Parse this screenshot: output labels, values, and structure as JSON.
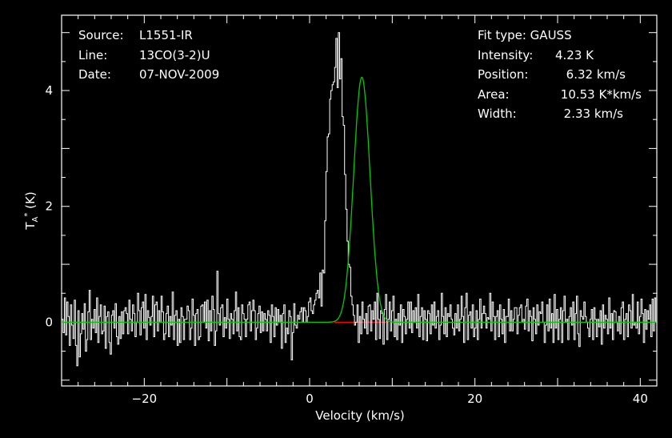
{
  "info": {
    "source_label": "Source:",
    "source_value": "L1551-IR",
    "line_label": "Line:",
    "line_value": "13CO(3-2)U",
    "date_label": "Date:",
    "date_value": "07-NOV-2009",
    "fit_type": "Fit type: GAUSS",
    "intensity_label": "Intensity:",
    "intensity_value": "4.23 K",
    "position_label": "Position:",
    "position_value": "6.32 km/s",
    "area_label": "Area:",
    "area_value": "10.53 K*km/s",
    "width_label": "Width:",
    "width_value": "2.33 km/s"
  },
  "chart_data": {
    "type": "line",
    "title": "",
    "xlabel": "Velocity (km/s)",
    "ylabel_main": "T",
    "ylabel_sub": "A",
    "ylabel_sup": "*",
    "ylabel_unit": "(K)",
    "xlim": [
      -30,
      42
    ],
    "ylim": [
      -1.1,
      5.3
    ],
    "x_ticks": [
      -20,
      0,
      20,
      40
    ],
    "x_tick_labels": [
      "−20",
      "0",
      "20",
      "40"
    ],
    "y_ticks": [
      0,
      2,
      4
    ],
    "y_tick_labels": [
      "0",
      "2",
      "4"
    ],
    "grid": false,
    "colors": {
      "spectrum": "#ffffff",
      "fit": "#00cc00",
      "baseline": "#ff0000",
      "axes": "#ffffff"
    },
    "baseline": {
      "x": [
        3.0,
        9.5
      ],
      "y": [
        0,
        0
      ]
    },
    "fit": {
      "model": "gauss",
      "amplitude": 4.23,
      "center": 6.32,
      "fwhm": 2.33
    },
    "series": [
      {
        "x_start": -29.9,
        "x_step": 0.15,
        "y": [
          0.05,
          -0.18,
          0.42,
          -0.22,
          0.35,
          0.1,
          -0.4,
          0.3,
          -0.05,
          -0.28,
          0.38,
          -0.4,
          -0.75,
          0.2,
          -0.6,
          -0.2,
          0.15,
          -0.12,
          0.32,
          -0.5,
          -0.3,
          0.18,
          0.55,
          -0.3,
          0.05,
          -0.1,
          0.22,
          -0.18,
          0.42,
          -0.35,
          0.1,
          0.3,
          -0.2,
          -0.15,
          0.28,
          -0.45,
          0.1,
          0.18,
          -0.35,
          -0.55,
          0.12,
          0.2,
          -0.1,
          0.32,
          -0.25,
          -0.38,
          0.1,
          -0.28,
          0.18,
          -0.2,
          0.2,
          0.25,
          0.15,
          -0.2,
          0.38,
          0.05,
          -0.15,
          0.3,
          0.15,
          -0.25,
          0.0,
          0.5,
          0.2,
          -0.22,
          0.25,
          0.35,
          -0.1,
          0.48,
          -0.3,
          0.2,
          0.08,
          -0.05,
          0.1,
          0.45,
          -0.25,
          0.3,
          0.35,
          -0.15,
          0.2,
          0.0,
          0.45,
          0.18,
          -0.3,
          -0.2,
          0.15,
          0.28,
          -0.25,
          0.1,
          -0.05,
          0.52,
          -0.3,
          0.12,
          0.2,
          -0.4,
          0.05,
          -0.35,
          0.25,
          0.1,
          -0.3,
          0.05,
          0.05,
          0.28,
          0.2,
          -0.3,
          -0.1,
          0.4,
          0.12,
          -0.4,
          0.15,
          0.22,
          -0.3,
          -0.25,
          0.28,
          0.3,
          0.0,
          0.35,
          -0.1,
          0.38,
          -0.32,
          0.2,
          -0.15,
          0.45,
          0.22,
          -0.4,
          -0.15,
          0.88,
          0.15,
          -0.05,
          0.25,
          0.3,
          -0.25,
          0.08,
          -0.1,
          0.4,
          0.05,
          -0.28,
          0.15,
          0.05,
          -0.2,
          0.2,
          0.52,
          -0.15,
          0.25,
          -0.25,
          -0.3,
          0.3,
          0.15,
          0.05,
          -0.25,
          0.05,
          0.3,
          0.35,
          -0.15,
          0.2,
          0.38,
          0.2,
          -0.3,
          -0.1,
          0.15,
          0.28,
          -0.18,
          0.18,
          -0.15,
          0.15,
          0.05,
          -0.15,
          0.2,
          0.12,
          -0.35,
          0.3,
          0.1,
          -0.25,
          0.25,
          -0.05,
          0.22,
          0.0,
          0.12,
          -0.45,
          0.15,
          0.3,
          -0.35,
          -0.1,
          -0.2,
          0.2,
          0.1,
          -0.65,
          -0.18,
          0.32,
          -0.05,
          -0.1,
          0.12,
          0.05,
          0.18,
          0.25,
          0.0,
          0.25,
          0.2,
          0.0,
          0.1,
          0.35,
          0.42,
          0.2,
          0.15,
          0.3,
          0.38,
          0.5,
          0.55,
          0.42,
          0.85,
          0.28,
          0.9,
          0.85,
          1.75,
          2.6,
          3.2,
          3.25,
          3.85,
          4.0,
          4.1,
          4.15,
          4.4,
          4.9,
          4.05,
          5.0,
          4.2,
          4.55,
          3.55,
          3.4,
          2.55,
          1.95,
          1.4,
          1.0,
          0.95,
          0.45,
          0.3,
          0.12,
          -0.05,
          0.0,
          0.3,
          -0.35,
          0.1,
          -0.2,
          0.35,
          0.05,
          -0.1,
          0.15,
          -0.2,
          0.28,
          0.3,
          -0.15,
          0.2,
          0.05,
          0.35,
          -0.3,
          0.5,
          0.05,
          -0.28,
          0.2,
          0.15,
          -0.38,
          0.22,
          0.48,
          -0.3,
          0.05,
          0.35,
          -0.15,
          0.2,
          0.45,
          -0.25,
          0.05,
          -0.3,
          0.15,
          -0.05,
          0.3,
          -0.35,
          0.22,
          0.1,
          -0.2,
          0.05,
          0.35,
          -0.1,
          0.35,
          -0.18,
          0.2,
          0.0,
          0.25,
          -0.1,
          0.48,
          -0.25,
          0.1,
          0.25,
          -0.3,
          0.2,
          0.05,
          -0.32,
          0.2,
          0.15,
          -0.2,
          0.3,
          -0.05,
          0.35,
          -0.1,
          0.1,
          0.2,
          -0.3,
          -0.05,
          0.5,
          0.1,
          -0.2,
          0.25,
          -0.25,
          0.15,
          0.1,
          0.3,
          0.05,
          -0.1,
          -0.22,
          0.15,
          -0.1,
          0.3,
          -0.15,
          0.05,
          0.45,
          0.1,
          -0.35,
          0.25,
          0.5,
          -0.3,
          0.12,
          0.18,
          -0.1,
          0.3,
          -0.25,
          -0.1,
          0.2,
          -0.3,
          0.05,
          0.4,
          -0.1,
          0.15,
          0.28,
          0.15,
          -0.1,
          0.08,
          0.05,
          0.5,
          -0.15,
          0.35,
          0.1,
          -0.3,
          0.1,
          0.2,
          -0.25,
          0.3,
          0.05,
          -0.2,
          0.22,
          -0.35,
          0.1,
          0.1,
          0.4,
          -0.15,
          0.2,
          -0.15,
          0.05,
          0.25,
          0.25,
          -0.2,
          0.12,
          0.25,
          0.3,
          0.0,
          0.05,
          -0.12,
          0.28,
          0.4,
          -0.15,
          0.2,
          0.1,
          -0.32,
          0.25,
          0.05,
          -0.2,
          0.3,
          -0.05,
          0.18,
          0.15,
          0.35,
          0.0,
          -0.35,
          -0.05,
          0.3,
          -0.15,
          0.4,
          -0.1,
          0.15,
          -0.35,
          0.48,
          -0.1,
          0.22,
          -0.3,
          0.05,
          0.25,
          -0.35,
          0.2,
          0.45,
          0.0,
          0.05,
          -0.3,
          0.1,
          0.25,
          -0.05,
          0.35,
          -0.3,
          0.15,
          0.45,
          -0.2,
          -0.42,
          0.2,
          0.1,
          0.05,
          0.35,
          0.1,
          0.0,
          -0.1,
          -0.25,
          0.05,
          0.22,
          -0.3,
          0.25,
          0.05,
          -0.25,
          0.05,
          -0.08,
          0.2,
          -0.38,
          0.3,
          -0.1,
          0.12,
          0.05,
          -0.2,
          0.42,
          -0.1,
          0.15,
          -0.3,
          0.2,
          0.18,
          0.0,
          -0.15,
          0.1,
          -0.2,
          0.25,
          0.35,
          -0.3,
          0.05,
          0.15,
          -0.25,
          0.3,
          0.2,
          -0.1,
          0.48,
          -0.05,
          0.0,
          -0.1,
          0.35,
          -0.2,
          0.1,
          0.4,
          0.15,
          -0.35,
          0.22,
          -0.12,
          0.2,
          0.05,
          0.3,
          -0.25,
          0.4,
          -0.15,
          0.42,
          0.0,
          -0.1,
          0.2,
          -0.2,
          0.12,
          -0.3,
          0.05,
          0.35,
          0.0,
          -0.05,
          0.3,
          0.25,
          -0.32,
          -0.1,
          0.05,
          0.45,
          -0.3
        ]
      }
    ]
  }
}
